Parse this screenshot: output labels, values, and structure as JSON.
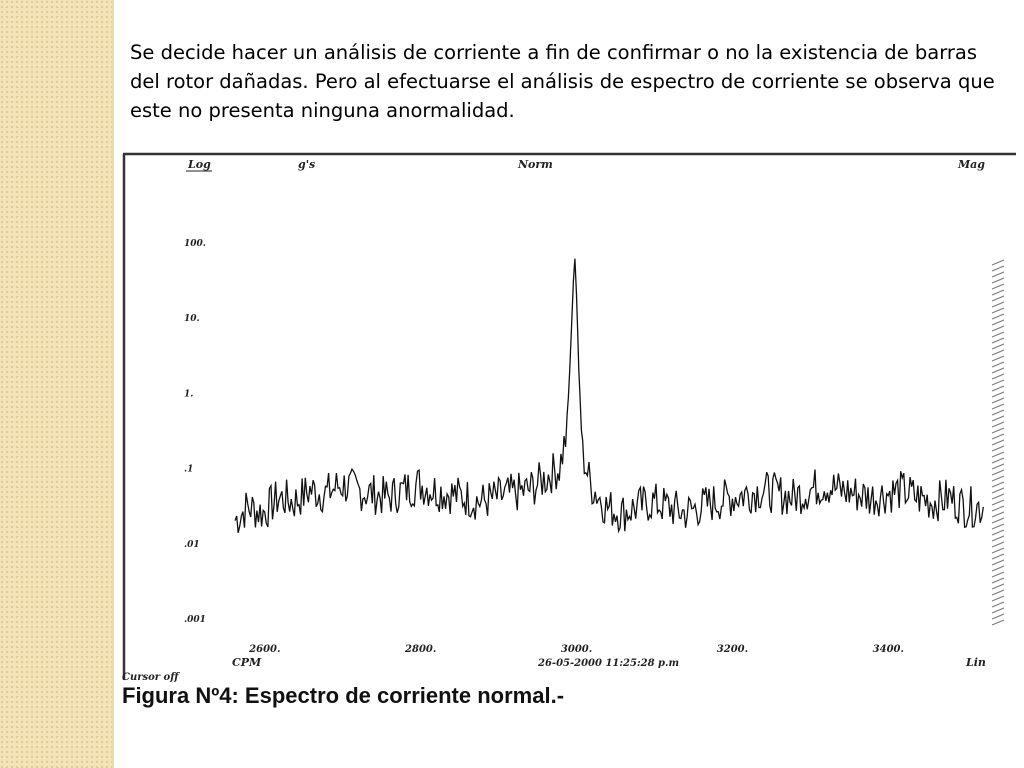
{
  "slide": {
    "paragraph": "Se decide hacer un análisis de corriente a fin de confirmar o no la existencia de barras del rotor dañadas. Pero al efectuarse el análisis de espectro de corriente se observa que este no presenta ninguna anormalidad.",
    "caption": "Figura Nº4: Espectro de corriente normal.-"
  },
  "colors": {
    "side_strip": "#f3e3b8",
    "trace": "#111111",
    "frame": "#333333"
  },
  "chart_data": {
    "type": "line",
    "title": "",
    "header": {
      "scale_mode": "Log",
      "units": "g's",
      "mode": "Norm",
      "display": "Mag"
    },
    "ylabel": "",
    "xlabel": "CPM",
    "x_scale_label": "Lin",
    "y_scale": "log",
    "y_tick_labels": [
      "100.",
      "10.",
      "1.",
      ".1",
      ".01",
      ".001"
    ],
    "y_tick_values": [
      100,
      10,
      1,
      0.1,
      0.01,
      0.001
    ],
    "x_tick_labels": [
      "2600.",
      "2800.",
      "3000.",
      "3200.",
      "3400."
    ],
    "x_tick_values": [
      2600,
      2800,
      3000,
      3200,
      3400
    ],
    "xlim": [
      2560,
      3530
    ],
    "ylim": [
      0.001,
      1000
    ],
    "cursor_status": "Cursor off",
    "timestamp": "26-05-2000 11:25:28 p.m",
    "grid": false,
    "series": [
      {
        "x": [
          2564,
          2580,
          2600,
          2620,
          2640,
          2660,
          2680,
          2700,
          2720,
          2740,
          2760,
          2780,
          2800,
          2820,
          2840,
          2860,
          2880,
          2900,
          2920,
          2940,
          2960,
          2980,
          2990,
          2995,
          2998,
          3000,
          3002,
          3005,
          3010,
          3020,
          3040,
          3060,
          3080,
          3100,
          3120,
          3140,
          3160,
          3180,
          3200,
          3220,
          3240,
          3260,
          3280,
          3300,
          3320,
          3340,
          3360,
          3380,
          3400,
          3420,
          3440,
          3460,
          3480,
          3500,
          3524
        ],
        "y": [
          0.02,
          0.03,
          0.025,
          0.04,
          0.035,
          0.05,
          0.045,
          0.06,
          0.05,
          0.045,
          0.04,
          0.05,
          0.06,
          0.05,
          0.045,
          0.04,
          0.035,
          0.04,
          0.045,
          0.05,
          0.07,
          0.1,
          0.3,
          5,
          30,
          60,
          20,
          2,
          0.15,
          0.06,
          0.03,
          0.025,
          0.03,
          0.035,
          0.03,
          0.025,
          0.03,
          0.035,
          0.04,
          0.045,
          0.05,
          0.045,
          0.04,
          0.05,
          0.06,
          0.05,
          0.045,
          0.04,
          0.045,
          0.05,
          0.04,
          0.035,
          0.04,
          0.03,
          0.03
        ]
      }
    ]
  }
}
